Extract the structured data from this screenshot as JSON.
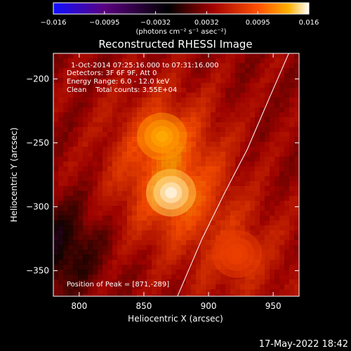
{
  "chart_data": {
    "type": "heatmap",
    "title": "Reconstructed RHESSI Image",
    "xlabel": "Heliocentric X (arcsec)",
    "ylabel": "Heliocentric Y (arcsec)",
    "xlim": [
      780,
      970
    ],
    "ylim": [
      -370,
      -180
    ],
    "xticks": [
      800,
      850,
      900,
      950
    ],
    "yticks": [
      -200,
      -250,
      -300,
      -350
    ],
    "colorbar": {
      "range": [
        -0.016,
        0.016
      ],
      "ticks": [
        "−0.016",
        "−0.0095",
        "−0.0032",
        "0.0032",
        "0.0095",
        "0.016"
      ],
      "label": "(photons cm⁻² s⁻¹ asec⁻²)",
      "colors": [
        "#1010ff",
        "#5a0080",
        "#000000",
        "#a00000",
        "#ff5000",
        "#ffb000",
        "#ffffff"
      ]
    },
    "annotations": [
      "1-Oct-2014 07:25:16.000 to 07:31:16.000",
      "Detectors: 3F 6F 9F, Att 0",
      "Energy Range: 6.0 - 12.0 keV",
      "Clean    Total counts: 3.55E+04"
    ],
    "peak_text": "Position of Peak = [871,-289]",
    "sources": [
      {
        "x": 871,
        "y": -289,
        "intensity": 0.016
      },
      {
        "x": 864,
        "y": -245,
        "intensity": 0.0135
      },
      {
        "x": 922,
        "y": -337,
        "intensity": 0.0085
      }
    ],
    "limb_curve": [
      [
        876,
        -370
      ],
      [
        895,
        -325
      ],
      [
        912,
        -290
      ],
      [
        930,
        -255
      ],
      [
        947,
        -215
      ],
      [
        962,
        -180
      ]
    ],
    "timestamp": "17-May-2022 18:42"
  }
}
